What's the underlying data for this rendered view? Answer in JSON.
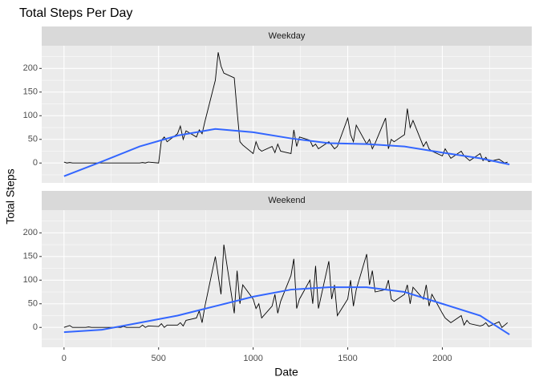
{
  "chart_data": {
    "type": "line",
    "title": "Total Steps Per Day",
    "x_label": "Date",
    "y_label": "Total Steps",
    "xlim": [
      -118,
      2473
    ],
    "xticks": [
      0,
      500,
      1000,
      1500,
      2000
    ],
    "ylim": [
      -42,
      248
    ],
    "yticks": [
      0,
      50,
      100,
      150,
      200
    ],
    "grid": true,
    "line_color": "#000000",
    "trend_color": "#3366FF",
    "x": [
      0,
      15,
      30,
      45,
      100,
      115,
      130,
      145,
      200,
      215,
      230,
      245,
      300,
      315,
      330,
      345,
      400,
      415,
      430,
      445,
      500,
      515,
      530,
      545,
      600,
      615,
      630,
      645,
      700,
      715,
      730,
      745,
      800,
      815,
      830,
      845,
      900,
      915,
      930,
      945,
      1000,
      1015,
      1030,
      1045,
      1100,
      1115,
      1130,
      1145,
      1200,
      1215,
      1230,
      1245,
      1300,
      1315,
      1330,
      1345,
      1400,
      1415,
      1430,
      1445,
      1500,
      1515,
      1530,
      1545,
      1600,
      1615,
      1630,
      1645,
      1700,
      1715,
      1730,
      1745,
      1800,
      1815,
      1830,
      1845,
      1900,
      1915,
      1930,
      1945,
      2000,
      2015,
      2030,
      2045,
      2100,
      2115,
      2130,
      2145,
      2200,
      2215,
      2230,
      2245,
      2300,
      2315,
      2330,
      2345
    ],
    "trend_x": [
      0,
      200,
      400,
      600,
      800,
      1000,
      1200,
      1400,
      1600,
      1800,
      2000,
      2200,
      2355
    ],
    "panels": [
      {
        "strip": "Weekday",
        "values": [
          2,
          0,
          1,
          0,
          0,
          0,
          0,
          0,
          0,
          0,
          0,
          0,
          0,
          0,
          0,
          0,
          0,
          1,
          0,
          2,
          0,
          48,
          55,
          45,
          62,
          78,
          50,
          68,
          55,
          70,
          62,
          88,
          175,
          234,
          205,
          190,
          180,
          110,
          45,
          38,
          20,
          45,
          30,
          25,
          35,
          22,
          40,
          25,
          20,
          70,
          35,
          55,
          48,
          35,
          40,
          30,
          45,
          38,
          30,
          35,
          95,
          60,
          45,
          80,
          40,
          50,
          30,
          42,
          95,
          30,
          50,
          45,
          60,
          115,
          75,
          90,
          35,
          45,
          30,
          25,
          15,
          30,
          20,
          10,
          25,
          15,
          10,
          5,
          20,
          5,
          12,
          3,
          8,
          4,
          0,
          2
        ],
        "trend": [
          -28,
          3,
          35,
          58,
          72,
          65,
          52,
          42,
          40,
          35,
          22,
          10,
          -3
        ]
      },
      {
        "strip": "Weekend",
        "values": [
          0,
          2,
          4,
          0,
          0,
          0,
          1,
          0,
          0,
          0,
          0,
          0,
          0,
          2,
          0,
          0,
          0,
          5,
          0,
          3,
          2,
          8,
          0,
          5,
          5,
          10,
          3,
          15,
          20,
          35,
          10,
          45,
          150,
          110,
          70,
          175,
          30,
          120,
          50,
          90,
          60,
          40,
          50,
          20,
          45,
          70,
          30,
          55,
          110,
          145,
          40,
          60,
          100,
          50,
          130,
          40,
          140,
          60,
          90,
          25,
          60,
          100,
          45,
          80,
          155,
          90,
          120,
          75,
          80,
          100,
          60,
          55,
          70,
          90,
          50,
          85,
          60,
          90,
          45,
          70,
          30,
          20,
          15,
          10,
          25,
          5,
          15,
          8,
          3,
          5,
          10,
          2,
          12,
          0,
          5,
          10
        ],
        "trend": [
          -10,
          -5,
          10,
          25,
          45,
          65,
          80,
          85,
          85,
          75,
          50,
          25,
          -15
        ]
      }
    ]
  }
}
